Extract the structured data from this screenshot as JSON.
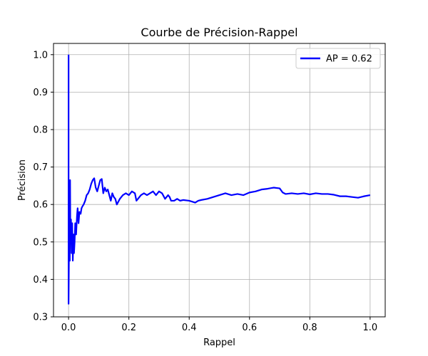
{
  "chart_data": {
    "type": "line",
    "title": "Courbe de Précision-Rappel",
    "xlabel": "Rappel",
    "ylabel": "Précision",
    "xlim": [
      -0.05,
      1.05
    ],
    "ylim": [
      0.3,
      1.03
    ],
    "xticks": [
      0.0,
      0.2,
      0.4,
      0.6,
      0.8,
      1.0
    ],
    "xtick_labels": [
      "0.0",
      "0.2",
      "0.4",
      "0.6",
      "0.8",
      "1.0"
    ],
    "yticks": [
      0.3,
      0.4,
      0.5,
      0.6,
      0.7,
      0.8,
      0.9,
      1.0
    ],
    "ytick_labels": [
      "0.3",
      "0.4",
      "0.5",
      "0.6",
      "0.7",
      "0.8",
      "0.9",
      "1.0"
    ],
    "grid": true,
    "legend_position": "top-right",
    "series": [
      {
        "name": "AP = 0.62",
        "color": "#0000ff",
        "x": [
          0.0,
          0.0,
          0.002,
          0.004,
          0.005,
          0.006,
          0.008,
          0.01,
          0.012,
          0.014,
          0.016,
          0.018,
          0.02,
          0.022,
          0.025,
          0.028,
          0.03,
          0.033,
          0.036,
          0.04,
          0.043,
          0.046,
          0.05,
          0.055,
          0.06,
          0.065,
          0.07,
          0.075,
          0.08,
          0.085,
          0.09,
          0.095,
          0.1,
          0.105,
          0.11,
          0.115,
          0.12,
          0.125,
          0.13,
          0.135,
          0.14,
          0.145,
          0.15,
          0.155,
          0.16,
          0.17,
          0.175,
          0.18,
          0.19,
          0.2,
          0.21,
          0.22,
          0.225,
          0.23,
          0.235,
          0.24,
          0.25,
          0.26,
          0.27,
          0.28,
          0.29,
          0.3,
          0.31,
          0.32,
          0.33,
          0.335,
          0.34,
          0.35,
          0.36,
          0.37,
          0.38,
          0.4,
          0.42,
          0.43,
          0.44,
          0.46,
          0.48,
          0.5,
          0.52,
          0.54,
          0.56,
          0.58,
          0.6,
          0.62,
          0.64,
          0.66,
          0.68,
          0.7,
          0.71,
          0.72,
          0.74,
          0.76,
          0.78,
          0.8,
          0.82,
          0.84,
          0.86,
          0.88,
          0.9,
          0.92,
          0.94,
          0.96,
          0.98,
          1.0
        ],
        "y": [
          1.0,
          0.335,
          0.55,
          0.45,
          0.665,
          0.5,
          0.56,
          0.47,
          0.55,
          0.45,
          0.52,
          0.47,
          0.5,
          0.55,
          0.52,
          0.57,
          0.59,
          0.55,
          0.58,
          0.575,
          0.59,
          0.595,
          0.6,
          0.61,
          0.625,
          0.63,
          0.64,
          0.655,
          0.665,
          0.67,
          0.645,
          0.635,
          0.65,
          0.665,
          0.668,
          0.63,
          0.645,
          0.635,
          0.64,
          0.625,
          0.61,
          0.63,
          0.62,
          0.615,
          0.6,
          0.615,
          0.62,
          0.625,
          0.63,
          0.625,
          0.635,
          0.63,
          0.61,
          0.615,
          0.62,
          0.625,
          0.63,
          0.625,
          0.63,
          0.635,
          0.625,
          0.635,
          0.63,
          0.615,
          0.625,
          0.62,
          0.61,
          0.61,
          0.615,
          0.61,
          0.612,
          0.61,
          0.605,
          0.61,
          0.612,
          0.615,
          0.62,
          0.625,
          0.63,
          0.625,
          0.628,
          0.625,
          0.632,
          0.635,
          0.64,
          0.642,
          0.645,
          0.643,
          0.632,
          0.628,
          0.63,
          0.628,
          0.63,
          0.627,
          0.63,
          0.628,
          0.628,
          0.626,
          0.622,
          0.622,
          0.62,
          0.618,
          0.622,
          0.625
        ]
      }
    ]
  }
}
